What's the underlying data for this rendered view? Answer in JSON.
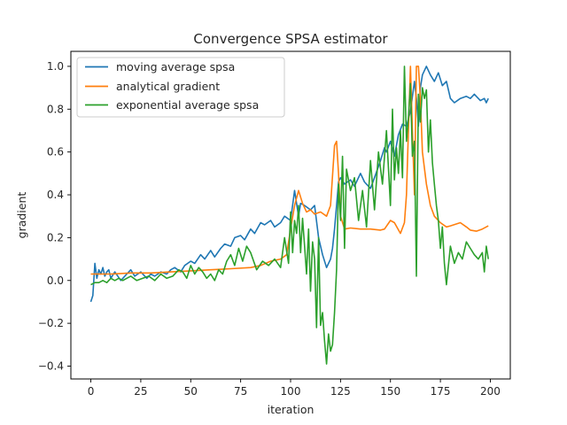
{
  "chart_data": {
    "type": "line",
    "title": "Convergence SPSA estimator",
    "xlabel": "iteration",
    "ylabel": "gradient",
    "xlim": [
      -10,
      210
    ],
    "ylim": [
      -0.46,
      1.07
    ],
    "xticks": [
      0,
      25,
      50,
      75,
      100,
      125,
      150,
      175,
      200
    ],
    "yticks": [
      -0.4,
      -0.2,
      0.0,
      0.2,
      0.4,
      0.6,
      0.8,
      1.0
    ],
    "ytick_labels": [
      "−0.4",
      "−0.2",
      "0.0",
      "0.2",
      "0.4",
      "0.6",
      "0.8",
      "1.0"
    ],
    "grid": false,
    "legend_position": "top-left",
    "series": [
      {
        "name": "moving average spsa",
        "color": "#1f77b4",
        "x": [
          0,
          1,
          2,
          3,
          4,
          5,
          6,
          7,
          8,
          9,
          10,
          12,
          15,
          18,
          20,
          22,
          25,
          28,
          30,
          32,
          35,
          38,
          40,
          42,
          45,
          47,
          50,
          52,
          55,
          57,
          60,
          62,
          65,
          67,
          70,
          72,
          75,
          77,
          80,
          82,
          85,
          87,
          90,
          92,
          95,
          97,
          100,
          102,
          104,
          105,
          107,
          110,
          112,
          114,
          116,
          118,
          120,
          121,
          122,
          123,
          124,
          125,
          127,
          130,
          132,
          135,
          137,
          140,
          142,
          145,
          147,
          148,
          150,
          152,
          154,
          156,
          158,
          160,
          162,
          163,
          164,
          165,
          166,
          168,
          170,
          172,
          174,
          176,
          178,
          180,
          182,
          185,
          188,
          190,
          192,
          195,
          197,
          198,
          199
        ],
        "y": [
          -0.1,
          -0.07,
          0.08,
          0.01,
          0.05,
          0.03,
          0.06,
          0.02,
          0.04,
          0.05,
          0.01,
          0.04,
          0.0,
          0.03,
          0.05,
          0.02,
          0.04,
          0.01,
          0.03,
          0.02,
          0.04,
          0.03,
          0.05,
          0.06,
          0.04,
          0.07,
          0.09,
          0.08,
          0.12,
          0.1,
          0.14,
          0.11,
          0.15,
          0.17,
          0.16,
          0.2,
          0.21,
          0.19,
          0.24,
          0.22,
          0.27,
          0.26,
          0.28,
          0.25,
          0.27,
          0.3,
          0.28,
          0.42,
          0.3,
          0.36,
          0.35,
          0.33,
          0.35,
          0.2,
          0.12,
          0.06,
          0.1,
          0.15,
          0.24,
          0.35,
          0.46,
          0.48,
          0.45,
          0.47,
          0.44,
          0.5,
          0.46,
          0.43,
          0.48,
          0.56,
          0.62,
          0.6,
          0.65,
          0.58,
          0.68,
          0.73,
          0.72,
          0.79,
          0.93,
          0.85,
          0.72,
          0.9,
          0.96,
          1.0,
          0.96,
          0.93,
          0.97,
          0.91,
          0.93,
          0.85,
          0.83,
          0.85,
          0.86,
          0.85,
          0.87,
          0.84,
          0.85,
          0.83,
          0.85
        ]
      },
      {
        "name": "analytical gradient",
        "color": "#ff7f0e",
        "x": [
          0,
          10,
          20,
          30,
          40,
          50,
          60,
          70,
          80,
          85,
          90,
          95,
          98,
          100,
          102,
          104,
          106,
          108,
          110,
          112,
          115,
          118,
          120,
          122,
          123,
          124,
          125,
          127,
          130,
          135,
          140,
          145,
          147,
          150,
          152,
          155,
          157,
          158,
          159,
          160,
          161,
          162,
          163,
          164,
          165,
          166,
          168,
          170,
          172,
          175,
          178,
          180,
          185,
          188,
          190,
          193,
          196,
          199
        ],
        "y": [
          0.03,
          0.03,
          0.035,
          0.035,
          0.04,
          0.045,
          0.05,
          0.055,
          0.06,
          0.07,
          0.09,
          0.1,
          0.12,
          0.24,
          0.35,
          0.42,
          0.36,
          0.32,
          0.33,
          0.31,
          0.32,
          0.3,
          0.35,
          0.63,
          0.65,
          0.5,
          0.3,
          0.24,
          0.245,
          0.24,
          0.24,
          0.235,
          0.24,
          0.28,
          0.27,
          0.22,
          0.27,
          0.4,
          0.7,
          1.0,
          0.7,
          0.4,
          1.0,
          1.0,
          0.85,
          0.6,
          0.45,
          0.35,
          0.3,
          0.27,
          0.25,
          0.255,
          0.27,
          0.25,
          0.235,
          0.23,
          0.24,
          0.255
        ]
      },
      {
        "name": "exponential average spsa",
        "color": "#2ca02c",
        "x": [
          0,
          2,
          4,
          6,
          8,
          10,
          12,
          14,
          16,
          18,
          20,
          23,
          26,
          29,
          32,
          35,
          38,
          41,
          44,
          46,
          48,
          50,
          52,
          54,
          56,
          58,
          60,
          62,
          64,
          66,
          68,
          70,
          72,
          74,
          76,
          78,
          80,
          83,
          86,
          89,
          92,
          95,
          97,
          99,
          100,
          101,
          102,
          103,
          104,
          105,
          106,
          107,
          108,
          109,
          110,
          111,
          112,
          113,
          114,
          115,
          116,
          117,
          118,
          119,
          120,
          121,
          122,
          123,
          124,
          125,
          126,
          127,
          128,
          130,
          132,
          134,
          136,
          138,
          140,
          142,
          144,
          146,
          148,
          150,
          151,
          152,
          153,
          154,
          155,
          156,
          157,
          158,
          159,
          160,
          161,
          162,
          163,
          164,
          165,
          166,
          167,
          168,
          169,
          170,
          171,
          172,
          173,
          174,
          175,
          176,
          177,
          178,
          180,
          182,
          184,
          186,
          188,
          190,
          192,
          194,
          196,
          197,
          198,
          199
        ],
        "y": [
          -0.02,
          -0.01,
          -0.01,
          0.0,
          -0.01,
          0.01,
          0.0,
          0.01,
          0.0,
          0.01,
          0.02,
          0.0,
          0.01,
          0.02,
          0.0,
          0.03,
          0.01,
          0.02,
          0.05,
          0.04,
          0.01,
          0.07,
          0.03,
          0.06,
          0.04,
          0.01,
          0.03,
          0.0,
          0.05,
          0.03,
          0.09,
          0.12,
          0.07,
          0.15,
          0.09,
          0.16,
          0.13,
          0.05,
          0.09,
          0.07,
          0.1,
          0.06,
          0.2,
          0.08,
          0.32,
          0.13,
          0.28,
          0.22,
          0.35,
          0.13,
          0.29,
          0.16,
          0.03,
          0.24,
          -0.05,
          0.18,
          0.1,
          -0.22,
          0.2,
          -0.21,
          -0.15,
          -0.28,
          -0.39,
          -0.25,
          -0.33,
          -0.3,
          -0.15,
          0.05,
          0.45,
          0.28,
          0.58,
          0.15,
          0.52,
          0.42,
          0.48,
          0.28,
          0.42,
          0.25,
          0.56,
          0.33,
          0.6,
          0.45,
          0.7,
          0.35,
          0.8,
          0.47,
          0.62,
          0.5,
          0.7,
          0.48,
          1.0,
          0.65,
          0.76,
          0.92,
          0.58,
          0.65,
          0.02,
          0.87,
          0.74,
          0.9,
          0.85,
          0.89,
          0.6,
          0.75,
          0.55,
          0.45,
          0.35,
          0.28,
          0.15,
          0.25,
          0.08,
          -0.02,
          0.16,
          0.08,
          0.13,
          0.1,
          0.18,
          0.15,
          0.12,
          0.1,
          0.13,
          0.04,
          0.16,
          0.1
        ]
      }
    ]
  }
}
